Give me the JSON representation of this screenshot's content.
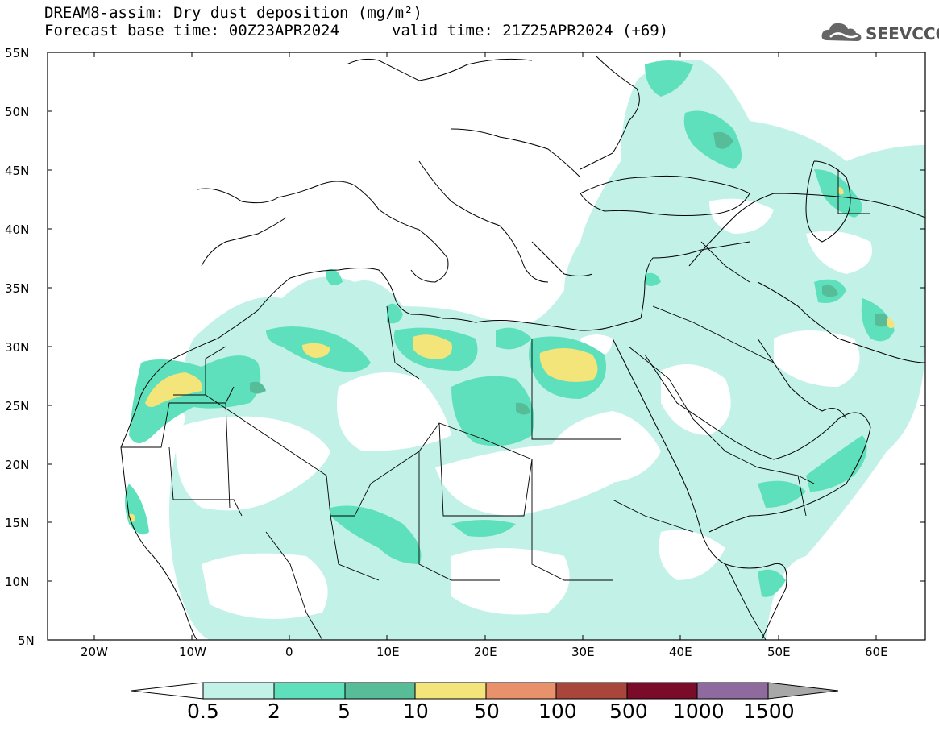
{
  "header": {
    "title": "DREAM8-assim: Dry dust deposition (mg/m²)",
    "base_time": "Forecast base time: 00Z23APR2024",
    "valid_time": "valid time: 21Z25APR2024 (+69)",
    "logo_text": "SEEVCCC",
    "logo_icon": "cloud-icon"
  },
  "map": {
    "lat_labels": [
      "55N",
      "50N",
      "45N",
      "40N",
      "35N",
      "30N",
      "25N",
      "20N",
      "15N",
      "10N",
      "5N"
    ],
    "lon_labels": [
      "20W",
      "10W",
      "0",
      "10E",
      "20E",
      "30E",
      "40E",
      "50E",
      "60E"
    ],
    "colors": {
      "land_outline": "#000000",
      "c1": "#c2f1e8",
      "c2": "#5fe0bd",
      "c3": "#56bd98",
      "c4": "#f3e57a"
    }
  },
  "colorbar": {
    "labels": [
      "0.5",
      "2",
      "5",
      "10",
      "50",
      "100",
      "500",
      "1000",
      "1500"
    ],
    "colors": [
      "#c2f1e8",
      "#5fe0bd",
      "#56bd98",
      "#f3e57a",
      "#e8916a",
      "#a9463c",
      "#7a0c2a",
      "#8e6a9e",
      "#a8a8a8"
    ]
  }
}
